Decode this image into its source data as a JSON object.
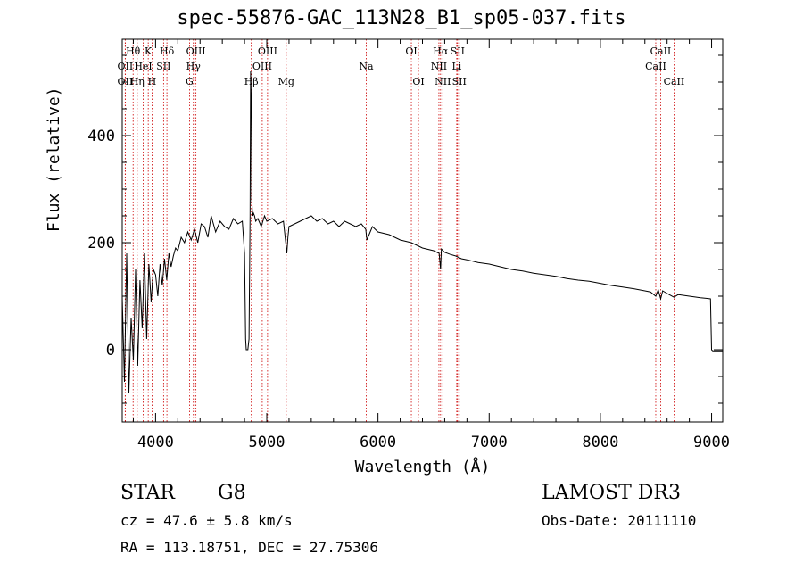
{
  "chart_data": {
    "type": "line",
    "title": "spec-55876-GAC_113N28_B1_sp05-037.fits",
    "xlabel": "Wavelength (Å)",
    "ylabel": "Flux (relative)",
    "xlim": [
      3700,
      9100
    ],
    "ylim": [
      -135,
      580
    ],
    "xticks": [
      4000,
      5000,
      6000,
      7000,
      8000,
      9000
    ],
    "yticks": [
      0,
      200,
      400
    ],
    "spectrum": {
      "name": "flux",
      "x": [
        3700,
        3720,
        3740,
        3760,
        3780,
        3800,
        3820,
        3840,
        3860,
        3880,
        3900,
        3920,
        3940,
        3960,
        3980,
        4000,
        4020,
        4040,
        4060,
        4080,
        4100,
        4120,
        4140,
        4160,
        4180,
        4200,
        4230,
        4260,
        4290,
        4320,
        4350,
        4380,
        4410,
        4440,
        4470,
        4500,
        4540,
        4580,
        4620,
        4660,
        4700,
        4740,
        4780,
        4800,
        4810,
        4815,
        4820,
        4830,
        4840,
        4850,
        4855,
        4860,
        4865,
        4870,
        4875,
        4880,
        4890,
        4900,
        4920,
        4950,
        4980,
        5000,
        5050,
        5100,
        5150,
        5180,
        5190,
        5200,
        5250,
        5300,
        5350,
        5400,
        5450,
        5500,
        5550,
        5600,
        5650,
        5700,
        5750,
        5800,
        5850,
        5890,
        5900,
        5950,
        6000,
        6100,
        6200,
        6300,
        6400,
        6500,
        6550,
        6563,
        6570,
        6600,
        6650,
        6700,
        6750,
        6800,
        6900,
        7000,
        7100,
        7200,
        7300,
        7400,
        7500,
        7600,
        7700,
        7800,
        7900,
        8000,
        8100,
        8200,
        8300,
        8400,
        8450,
        8498,
        8520,
        8542,
        8560,
        8600,
        8662,
        8700,
        8800,
        8900,
        8950,
        8990,
        9000,
        9010,
        9050,
        9100
      ],
      "y": [
        100,
        -60,
        180,
        -80,
        60,
        -20,
        150,
        -30,
        130,
        40,
        180,
        20,
        160,
        90,
        150,
        140,
        100,
        160,
        120,
        170,
        130,
        180,
        155,
        175,
        190,
        185,
        210,
        200,
        220,
        205,
        225,
        200,
        235,
        230,
        210,
        250,
        220,
        240,
        230,
        225,
        245,
        235,
        240,
        180,
        20,
        0,
        0,
        0,
        20,
        250,
        520,
        470,
        280,
        260,
        250,
        255,
        250,
        240,
        245,
        230,
        250,
        240,
        245,
        235,
        240,
        180,
        210,
        230,
        235,
        240,
        245,
        250,
        240,
        245,
        235,
        240,
        230,
        240,
        235,
        230,
        235,
        225,
        205,
        230,
        220,
        215,
        205,
        200,
        190,
        185,
        180,
        150,
        188,
        182,
        178,
        175,
        170,
        168,
        163,
        160,
        155,
        150,
        147,
        143,
        140,
        137,
        133,
        130,
        128,
        124,
        120,
        117,
        114,
        110,
        108,
        100,
        112,
        95,
        110,
        105,
        98,
        103,
        100,
        97,
        96,
        95,
        0,
        -2,
        -2,
        -2
      ]
    },
    "line_markers": [
      {
        "label": "Hθ",
        "wavelength": 3798,
        "row": 0
      },
      {
        "label": "OII",
        "wavelength": 3727,
        "row": 1
      },
      {
        "label": "OII",
        "wavelength": 3727,
        "row": 2
      },
      {
        "label": "Hη",
        "wavelength": 3835,
        "row": 2
      },
      {
        "label": "HeI",
        "wavelength": 3889,
        "row": 1
      },
      {
        "label": "K",
        "wavelength": 3934,
        "row": 0
      },
      {
        "label": "H",
        "wavelength": 3968,
        "row": 2
      },
      {
        "label": "SII",
        "wavelength": 4072,
        "row": 1
      },
      {
        "label": "Hδ",
        "wavelength": 4102,
        "row": 0
      },
      {
        "label": "OIII",
        "wavelength": 4363,
        "row": 0
      },
      {
        "label": "Hγ",
        "wavelength": 4340,
        "row": 1
      },
      {
        "label": "G",
        "wavelength": 4305,
        "row": 2
      },
      {
        "label": "Hβ",
        "wavelength": 4861,
        "row": 2
      },
      {
        "label": "OIII",
        "wavelength": 5007,
        "row": 0
      },
      {
        "label": "OIII",
        "wavelength": 4959,
        "row": 1
      },
      {
        "label": "Mg",
        "wavelength": 5175,
        "row": 2
      },
      {
        "label": "Na",
        "wavelength": 5894,
        "row": 1
      },
      {
        "label": "OI",
        "wavelength": 6300,
        "row": 0
      },
      {
        "label": "OI",
        "wavelength": 6364,
        "row": 2
      },
      {
        "label": "Hα",
        "wavelength": 6563,
        "row": 0
      },
      {
        "label": "SII",
        "wavelength": 6716,
        "row": 0
      },
      {
        "label": "NII",
        "wavelength": 6548,
        "row": 1
      },
      {
        "label": "Li",
        "wavelength": 6708,
        "row": 1
      },
      {
        "label": "NII",
        "wavelength": 6583,
        "row": 2
      },
      {
        "label": "SII",
        "wavelength": 6731,
        "row": 2
      },
      {
        "label": "CaII",
        "wavelength": 8542,
        "row": 0
      },
      {
        "label": "CaII",
        "wavelength": 8498,
        "row": 1
      },
      {
        "label": "CaII",
        "wavelength": 8662,
        "row": 2
      }
    ]
  },
  "info": {
    "object_class": "STAR",
    "subclass": "G8",
    "survey": "LAMOST DR3",
    "redshift": "cz = 47.6 ± 5.8 km/s",
    "obs_date": "Obs-Date: 20111110",
    "coords": "RA = 113.18751, DEC =  27.75306"
  },
  "colors": {
    "marker": "#cc0000",
    "axis": "#000000",
    "line": "#000000"
  }
}
